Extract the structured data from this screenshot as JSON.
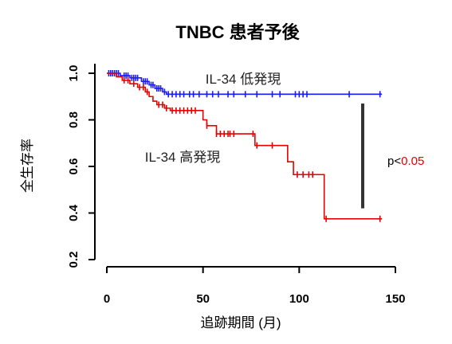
{
  "chart_data": {
    "type": "line",
    "title": "TNBC 患者予後",
    "xlabel": "追跡期間 (月)",
    "ylabel": "全生存率",
    "xlim": [
      0,
      150
    ],
    "ylim": [
      0.2,
      1.0
    ],
    "x_ticks": [
      "0",
      "50",
      "100",
      "150"
    ],
    "y_ticks": [
      "0.2",
      "0.4",
      "0.6",
      "0.8",
      "1.0"
    ],
    "grid": false,
    "series": [
      {
        "name": "IL-34 低発現",
        "color": "#1a1aff",
        "steps": [
          [
            0,
            1.0
          ],
          [
            7,
            0.99
          ],
          [
            12,
            0.98
          ],
          [
            18,
            0.965
          ],
          [
            22,
            0.95
          ],
          [
            25,
            0.935
          ],
          [
            29,
            0.92
          ],
          [
            31,
            0.91
          ],
          [
            143,
            0.91
          ]
        ],
        "censored": [
          1,
          2,
          3,
          4,
          5,
          6,
          9,
          10,
          11,
          13,
          14,
          15,
          16,
          19,
          20,
          21,
          23,
          24,
          26,
          27,
          28,
          30,
          32,
          34,
          36,
          38,
          40,
          43,
          45,
          48,
          52,
          55,
          58,
          63,
          66,
          72,
          78,
          86,
          90,
          98,
          100,
          102,
          104,
          126,
          142
        ]
      },
      {
        "name": "IL-34 高発現",
        "color": "#e60000",
        "steps": [
          [
            0,
            1.0
          ],
          [
            5,
            0.985
          ],
          [
            8,
            0.97
          ],
          [
            12,
            0.955
          ],
          [
            16,
            0.94
          ],
          [
            20,
            0.92
          ],
          [
            22,
            0.9
          ],
          [
            24,
            0.88
          ],
          [
            26,
            0.865
          ],
          [
            30,
            0.85
          ],
          [
            33,
            0.84
          ],
          [
            50,
            0.8
          ],
          [
            52,
            0.775
          ],
          [
            57,
            0.74
          ],
          [
            77,
            0.69
          ],
          [
            94,
            0.62
          ],
          [
            97,
            0.565
          ],
          [
            113,
            0.375
          ],
          [
            143,
            0.375
          ]
        ],
        "censored": [
          9,
          11,
          14,
          17,
          19,
          21,
          27,
          29,
          31,
          34,
          36,
          38,
          40,
          42,
          44,
          46,
          52,
          57,
          59,
          61,
          63,
          64,
          66,
          76,
          78,
          86,
          99,
          102,
          105,
          107,
          114,
          142
        ]
      }
    ],
    "annotations": {
      "high_label": "IL-34 高発現",
      "low_label": "IL-34 低発現",
      "p_prefix": "p<",
      "p_value": "0.05",
      "p_value_color": "#e60000",
      "bar_from": 0.42,
      "bar_to": 0.87,
      "bar_x": 133
    }
  }
}
